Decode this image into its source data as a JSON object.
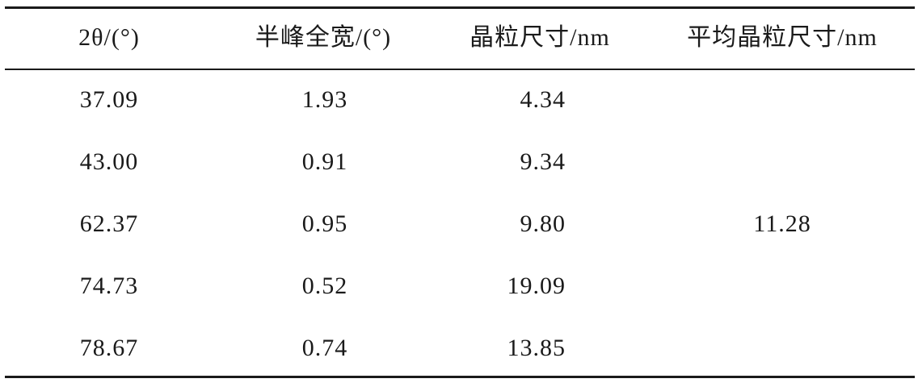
{
  "table": {
    "header": [
      "2θ/(°)",
      "半峰全宽/(°)",
      "晶粒尺寸/nm",
      "平均晶粒尺寸/nm"
    ],
    "rows": [
      [
        "37.09",
        "1.93",
        "4.34"
      ],
      [
        "43.00",
        "0.91",
        "9.34"
      ],
      [
        "62.37",
        "0.95",
        "9.80"
      ],
      [
        "74.73",
        "0.52",
        "19.09"
      ],
      [
        "78.67",
        "0.74",
        "13.85"
      ]
    ],
    "average": "11.28"
  }
}
